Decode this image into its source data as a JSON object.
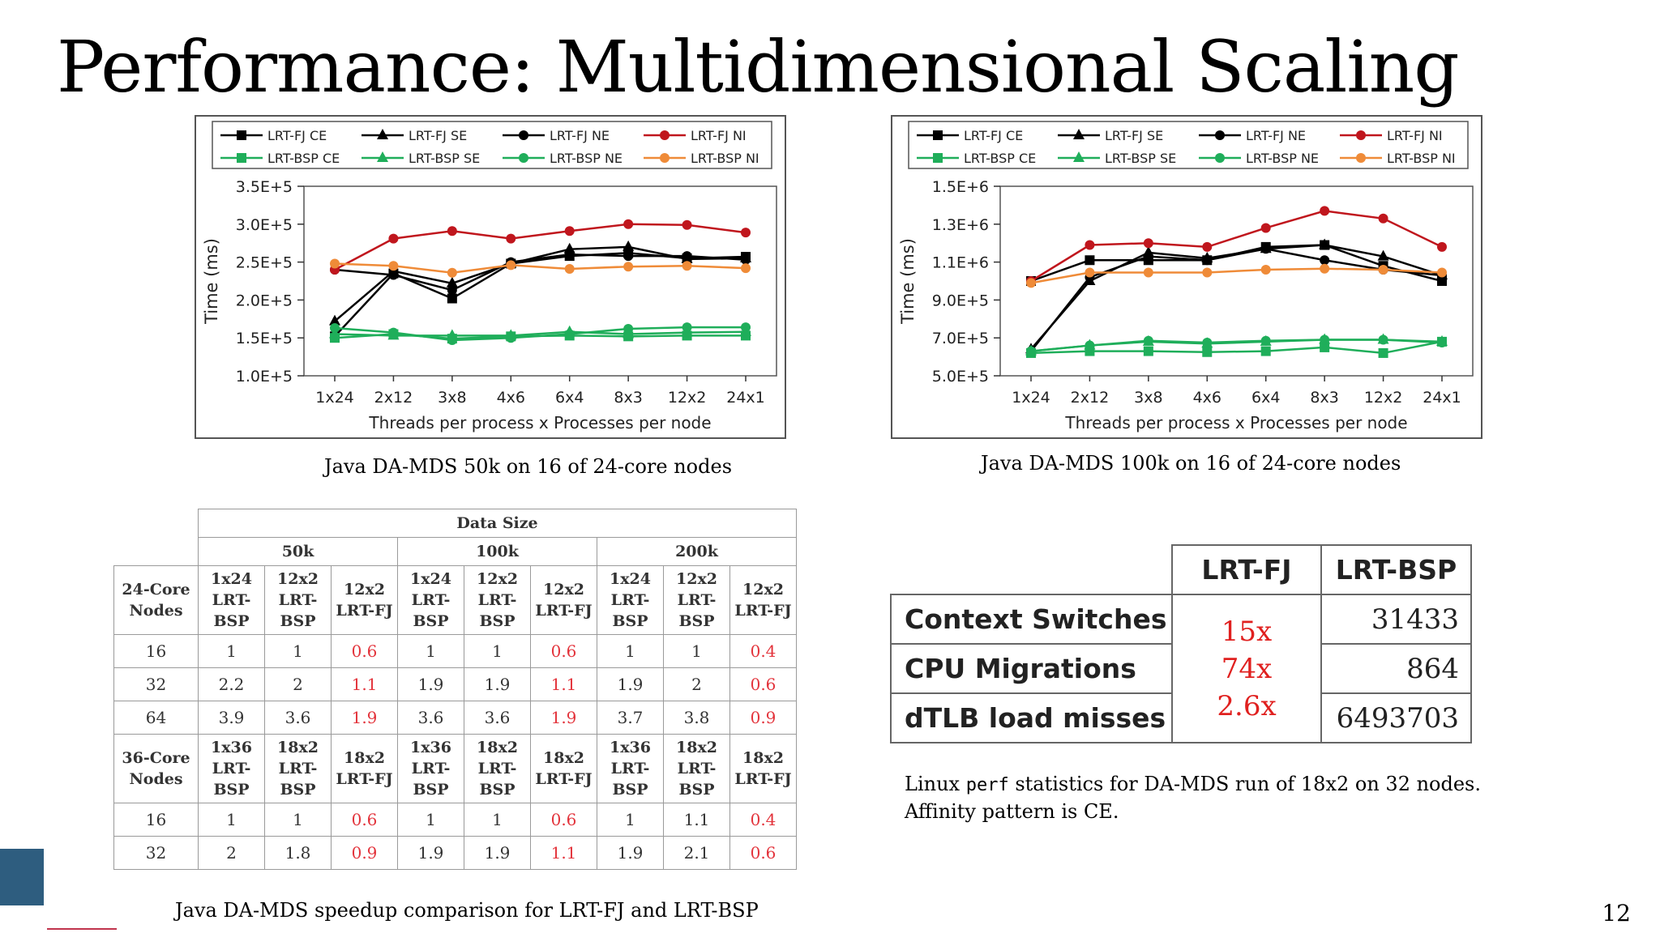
{
  "slide": {
    "title": "Performance: Multidimensional Scaling",
    "page_number": "12"
  },
  "captions": {
    "chart1": "Java DA-MDS 50k on 16 of 24-core nodes",
    "chart2": "Java DA-MDS 100k on 16 of 24-core nodes",
    "table": "Java DA-MDS speedup comparison for LRT-FJ and LRT-BSP",
    "perf_line1_pre": "Linux ",
    "perf_line1_code": "perf",
    "perf_line1_post": " statistics for DA-MDS run of 18x2 on 32 nodes.",
    "perf_line2": "Affinity pattern is CE."
  },
  "colors": {
    "fj": "#000000",
    "ni_fj": "#c0161d",
    "bsp": "#1fae5a",
    "ni_bsp": "#ef8b38",
    "corner": "#2e5d7f",
    "accent_line": "#c0344d",
    "ratio_red": "#e0201f"
  },
  "chart_data": [
    {
      "type": "line",
      "xlabel": "Threads per process x Processes per node",
      "ylabel": "Time (ms)",
      "ylim": [
        100000,
        350000
      ],
      "yticks": [
        100000,
        150000,
        200000,
        250000,
        300000,
        350000
      ],
      "ytick_labels": [
        "1.0E+5",
        "1.5E+5",
        "2.0E+5",
        "2.5E+5",
        "3.0E+5",
        "3.5E+5"
      ],
      "categories": [
        "1x24",
        "2x12",
        "3x8",
        "4x6",
        "6x4",
        "8x3",
        "12x2",
        "24x1"
      ],
      "legend_position": "top",
      "series": [
        {
          "name": "LRT-FJ CE",
          "marker": "square",
          "color": "#000000",
          "values": [
            152000,
            235000,
            202000,
            248000,
            258000,
            262000,
            255000,
            257000
          ]
        },
        {
          "name": "LRT-FJ SE",
          "marker": "triangle",
          "color": "#000000",
          "values": [
            172000,
            238000,
            222000,
            248000,
            267000,
            270000,
            254000,
            255000
          ]
        },
        {
          "name": "LRT-FJ NE",
          "marker": "circle",
          "color": "#000000",
          "values": [
            240000,
            233000,
            213000,
            250000,
            260000,
            258000,
            258000,
            253000
          ]
        },
        {
          "name": "LRT-FJ NI",
          "marker": "circle",
          "color": "#c0161d",
          "values": [
            240000,
            281000,
            291000,
            281000,
            291000,
            300000,
            299000,
            289000
          ]
        },
        {
          "name": "LRT-BSP CE",
          "marker": "square",
          "color": "#1fae5a",
          "values": [
            150000,
            155000,
            149000,
            152000,
            153000,
            152000,
            153000,
            153000
          ]
        },
        {
          "name": "LRT-BSP SE",
          "marker": "triangle",
          "color": "#1fae5a",
          "values": [
            155000,
            153000,
            153000,
            153000,
            158000,
            155000,
            157000,
            158000
          ]
        },
        {
          "name": "LRT-BSP NE",
          "marker": "circle",
          "color": "#1fae5a",
          "values": [
            163000,
            157000,
            147000,
            150000,
            155000,
            162000,
            164000,
            164000
          ]
        },
        {
          "name": "LRT-BSP NI",
          "marker": "circle",
          "color": "#ef8b38",
          "values": [
            248000,
            245000,
            236000,
            246000,
            241000,
            244000,
            245000,
            242000
          ]
        }
      ]
    },
    {
      "type": "line",
      "xlabel": "Threads per process x Processes per node",
      "ylabel": "Time (ms)",
      "ylim": [
        500000,
        1500000
      ],
      "yticks": [
        500000,
        700000,
        900000,
        1100000,
        1300000,
        1500000
      ],
      "ytick_labels": [
        "5.0E+5",
        "7.0E+5",
        "9.0E+5",
        "1.1E+6",
        "1.3E+6",
        "1.5E+6"
      ],
      "categories": [
        "1x24",
        "2x12",
        "3x8",
        "4x6",
        "6x4",
        "8x3",
        "12x2",
        "24x1"
      ],
      "legend_position": "top",
      "series": [
        {
          "name": "LRT-FJ CE",
          "marker": "square",
          "color": "#000000",
          "values": [
            1000000,
            1110000,
            1110000,
            1110000,
            1180000,
            1190000,
            1080000,
            1000000
          ]
        },
        {
          "name": "LRT-FJ SE",
          "marker": "triangle",
          "color": "#000000",
          "values": [
            640000,
            1000000,
            1150000,
            1120000,
            1170000,
            1190000,
            1130000,
            1030000
          ]
        },
        {
          "name": "LRT-FJ NE",
          "marker": "circle",
          "color": "#000000",
          "values": [
            630000,
            1020000,
            1130000,
            1110000,
            1170000,
            1110000,
            1060000,
            1030000
          ]
        },
        {
          "name": "LRT-FJ NI",
          "marker": "circle",
          "color": "#c0161d",
          "values": [
            1000000,
            1190000,
            1200000,
            1180000,
            1280000,
            1370000,
            1330000,
            1180000
          ]
        },
        {
          "name": "LRT-BSP CE",
          "marker": "square",
          "color": "#1fae5a",
          "values": [
            620000,
            630000,
            630000,
            625000,
            630000,
            650000,
            620000,
            680000
          ]
        },
        {
          "name": "LRT-BSP SE",
          "marker": "triangle",
          "color": "#1fae5a",
          "values": [
            630000,
            660000,
            680000,
            670000,
            680000,
            690000,
            690000,
            680000
          ]
        },
        {
          "name": "LRT-BSP NE",
          "marker": "circle",
          "color": "#1fae5a",
          "values": [
            630000,
            660000,
            685000,
            675000,
            685000,
            690000,
            690000,
            675000
          ]
        },
        {
          "name": "LRT-BSP NI",
          "marker": "circle",
          "color": "#ef8b38",
          "values": [
            990000,
            1045000,
            1045000,
            1045000,
            1060000,
            1065000,
            1060000,
            1045000
          ]
        }
      ]
    }
  ],
  "speedup_table": {
    "data_size_label": "Data Size",
    "groups": [
      "50k",
      "100k",
      "200k"
    ],
    "sections": [
      {
        "row_header": [
          "24-Core",
          "Nodes"
        ],
        "col_headers": [
          [
            "1x24",
            "LRT-",
            "BSP"
          ],
          [
            "12x2",
            "LRT-",
            "BSP"
          ],
          [
            "12x2",
            "LRT-FJ"
          ],
          [
            "1x24",
            "LRT-",
            "BSP"
          ],
          [
            "12x2",
            "LRT-",
            "BSP"
          ],
          [
            "12x2",
            "LRT-FJ"
          ],
          [
            "1x24",
            "LRT-",
            "BSP"
          ],
          [
            "12x2",
            "LRT-",
            "BSP"
          ],
          [
            "12x2",
            "LRT-FJ"
          ]
        ],
        "rows": [
          {
            "nodes": "16",
            "values": [
              "1",
              "1",
              "0.6",
              "1",
              "1",
              "0.6",
              "1",
              "1",
              "0.4"
            ]
          },
          {
            "nodes": "32",
            "values": [
              "2.2",
              "2",
              "1.1",
              "1.9",
              "1.9",
              "1.1",
              "1.9",
              "2",
              "0.6"
            ]
          },
          {
            "nodes": "64",
            "values": [
              "3.9",
              "3.6",
              "1.9",
              "3.6",
              "3.6",
              "1.9",
              "3.7",
              "3.8",
              "0.9"
            ]
          }
        ]
      },
      {
        "row_header": [
          "36-Core",
          "Nodes"
        ],
        "col_headers": [
          [
            "1x36",
            "LRT-",
            "BSP"
          ],
          [
            "18x2",
            "LRT-",
            "BSP"
          ],
          [
            "18x2",
            "LRT-FJ"
          ],
          [
            "1x36",
            "LRT-",
            "BSP"
          ],
          [
            "18x2",
            "LRT-",
            "BSP"
          ],
          [
            "18x2",
            "LRT-FJ"
          ],
          [
            "1x36",
            "LRT-",
            "BSP"
          ],
          [
            "18x2",
            "LRT-",
            "BSP"
          ],
          [
            "18x2",
            "LRT-FJ"
          ]
        ],
        "rows": [
          {
            "nodes": "16",
            "values": [
              "1",
              "1",
              "0.6",
              "1",
              "1",
              "0.6",
              "1",
              "1.1",
              "0.4"
            ]
          },
          {
            "nodes": "32",
            "values": [
              "2",
              "1.8",
              "0.9",
              "1.9",
              "1.9",
              "1.1",
              "1.9",
              "2.1",
              "0.6"
            ]
          }
        ]
      }
    ]
  },
  "perf_table": {
    "col_fj": "LRT-FJ",
    "col_bsp": "LRT-BSP",
    "rows": [
      {
        "label": "Context Switches",
        "ratio": "15x",
        "bsp": "31433"
      },
      {
        "label": "CPU Migrations",
        "ratio": "74x",
        "bsp": "864"
      },
      {
        "label": "dTLB load misses",
        "ratio": "2.6x",
        "bsp": "6493703"
      }
    ]
  }
}
